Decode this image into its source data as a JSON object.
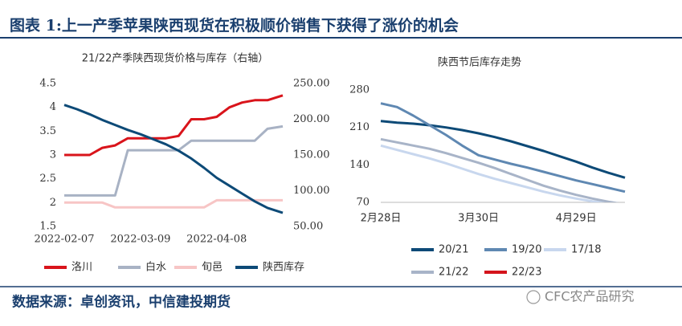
{
  "header": {
    "title": "图表 1:上一产季苹果陕西现货在积极顺价销售下获得了涨价的机会"
  },
  "chart_data": [
    {
      "type": "line",
      "title": "21/22产季陕西现货价格与库存（右轴）",
      "x": [
        "2022-02-07",
        "2022-02-12",
        "2022-02-17",
        "2022-02-22",
        "2022-02-27",
        "2022-03-04",
        "2022-03-09",
        "2022-03-14",
        "2022-03-19",
        "2022-03-24",
        "2022-03-29",
        "2022-04-03",
        "2022-04-08",
        "2022-04-13",
        "2022-04-18",
        "2022-04-23",
        "2022-04-28",
        "2022-05-04"
      ],
      "xlim": [
        "2022-02-07",
        "2022-05-04"
      ],
      "xticks": [
        "2022-02-07",
        "2022-03-09",
        "2022-04-08"
      ],
      "ylim": [
        1.5,
        4.5
      ],
      "yticks": [
        1.5,
        2,
        2.5,
        3,
        3.5,
        4,
        4.5
      ],
      "y2lim": [
        50,
        250
      ],
      "y2ticks": [
        {
          "value": 50,
          "label": "50.00"
        },
        {
          "value": 100,
          "label": "100.00"
        },
        {
          "value": 150,
          "label": "150.00"
        },
        {
          "value": 200,
          "label": "200.00"
        },
        {
          "value": 250,
          "label": "250.00"
        }
      ],
      "series": [
        {
          "name": "洛川",
          "color": "#d9141b",
          "values": [
            3.0,
            3.0,
            3.0,
            3.15,
            3.2,
            3.35,
            3.35,
            3.35,
            3.35,
            3.4,
            3.75,
            3.75,
            3.8,
            4.0,
            4.1,
            4.15,
            4.15,
            4.25
          ]
        },
        {
          "name": "白水",
          "color": "#a8b2c4",
          "values": [
            2.15,
            2.15,
            2.15,
            2.15,
            2.15,
            3.1,
            3.1,
            3.1,
            3.1,
            3.1,
            3.3,
            3.3,
            3.3,
            3.3,
            3.3,
            3.3,
            3.55,
            3.6
          ]
        },
        {
          "name": "旬邑",
          "color": "#f7c5c5",
          "values": [
            2.0,
            2.0,
            2.0,
            2.0,
            1.9,
            1.9,
            1.9,
            1.9,
            1.9,
            1.9,
            1.9,
            1.9,
            2.05,
            2.05,
            2.05,
            2.05,
            2.05,
            2.05
          ]
        },
        {
          "name": "陕西库存",
          "color": "#0d4a77",
          "axis": "y2",
          "values": [
            220,
            214,
            207,
            199,
            192,
            185,
            179,
            172,
            165,
            156,
            145,
            132,
            118,
            107,
            96,
            85,
            76,
            69
          ]
        }
      ]
    },
    {
      "type": "line",
      "title": "陕西节后库存走势",
      "categories": [
        "2月28日",
        null,
        null,
        null,
        null,
        null,
        "3月30日",
        null,
        null,
        null,
        null,
        null,
        "4月29日",
        null,
        null,
        null
      ],
      "ylim": [
        70,
        280
      ],
      "yticks": [
        70,
        140,
        210,
        280
      ],
      "series": [
        {
          "name": "20/21",
          "color": "#0d4a77",
          "values": [
            222,
            219,
            217,
            214,
            210,
            205,
            199,
            192,
            184,
            175,
            166,
            156,
            146,
            135,
            125,
            116
          ]
        },
        {
          "name": "19/20",
          "color": "#5f88b2",
          "values": [
            255,
            248,
            232,
            214,
            196,
            176,
            158,
            150,
            142,
            135,
            127,
            119,
            111,
            104,
            97,
            90
          ]
        },
        {
          "name": "17/18",
          "color": "#c8d7ee",
          "values": [
            176,
            168,
            160,
            152,
            143,
            133,
            123,
            114,
            106,
            98,
            90,
            83,
            77,
            72,
            68,
            64
          ]
        },
        {
          "name": "21/22",
          "color": "#a8b4c8",
          "values": [
            188,
            182,
            176,
            170,
            162,
            153,
            144,
            134,
            123,
            112,
            101,
            92,
            84,
            77,
            71,
            66
          ]
        },
        {
          "name": "22/23",
          "color": "#d4141c",
          "values": [
            null,
            null,
            null,
            null,
            null,
            null,
            null,
            null,
            null,
            null,
            null,
            null,
            null,
            null,
            null,
            null
          ]
        }
      ]
    }
  ],
  "source": "数据来源：卓创资讯，中信建投期货",
  "watermark": "CFC农产品研究"
}
